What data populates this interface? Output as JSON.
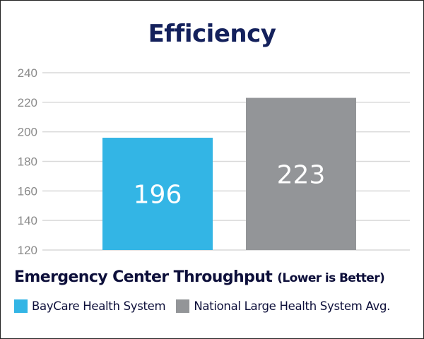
{
  "chart_data": {
    "type": "bar",
    "title": "Efficiency",
    "subtitle": "Emergency Center Throughput",
    "subtitle_note": "(Lower is Better)",
    "categories": [
      "BayCare Health System",
      "National Large Health System Avg."
    ],
    "values": [
      196,
      223
    ],
    "value_labels": [
      "196",
      "223"
    ],
    "colors": [
      "#33b5e5",
      "#939598"
    ],
    "ylim": [
      120,
      240
    ],
    "yticks": [
      120,
      140,
      160,
      180,
      200,
      220,
      240
    ],
    "ytick_labels": [
      "120",
      "140",
      "160",
      "180",
      "200",
      "220",
      "240"
    ],
    "grid": true,
    "legend": "bottom-left",
    "xlabel": "",
    "ylabel": ""
  }
}
